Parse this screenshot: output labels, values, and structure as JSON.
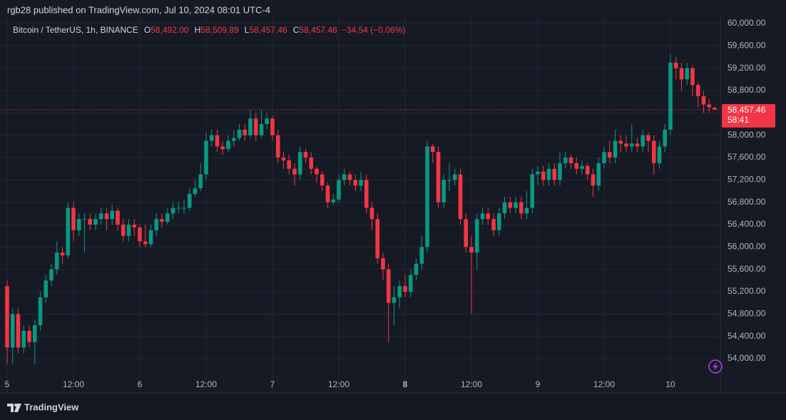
{
  "chart_data": {
    "type": "candlestick",
    "attribution": "rgb28 published on TradingView.com, Jul 10, 2024 08:01 UTC-4",
    "symbol": "Bitcoin / TetherUS, 1h, BINANCE",
    "ohlc_legend": [
      {
        "label": "O",
        "value": "58,492.00"
      },
      {
        "label": "H",
        "value": "58,509.89"
      },
      {
        "label": "L",
        "value": "58,457.46"
      },
      {
        "label": "C",
        "value": "58,457.46"
      }
    ],
    "change": "−34.54 (−0.06%)",
    "last_price_label": "58,457.46",
    "countdown": "58:41",
    "brand": "TradingView",
    "up_color": "#089981",
    "down_color": "#f23645",
    "grid": true,
    "categories": [
      "5",
      null,
      null,
      null,
      null,
      null,
      null,
      null,
      null,
      null,
      null,
      null,
      "12:00",
      null,
      null,
      null,
      null,
      null,
      null,
      null,
      null,
      null,
      null,
      null,
      "6",
      null,
      null,
      null,
      null,
      null,
      null,
      null,
      null,
      null,
      null,
      null,
      "12:00",
      null,
      null,
      null,
      null,
      null,
      null,
      null,
      null,
      null,
      null,
      null,
      "7",
      null,
      null,
      null,
      null,
      null,
      null,
      null,
      null,
      null,
      null,
      null,
      "12:00",
      null,
      null,
      null,
      null,
      null,
      null,
      null,
      null,
      null,
      null,
      null,
      "8",
      null,
      null,
      null,
      null,
      null,
      null,
      null,
      null,
      null,
      null,
      null,
      "12:00",
      null,
      null,
      null,
      null,
      null,
      null,
      null,
      null,
      null,
      null,
      null,
      "9",
      null,
      null,
      null,
      null,
      null,
      null,
      null,
      null,
      null,
      null,
      null,
      "12:00",
      null,
      null,
      null,
      null,
      null,
      null,
      null,
      null,
      null,
      null,
      null,
      "10",
      null,
      null,
      null,
      null,
      null,
      null,
      null,
      null
    ],
    "open": [
      55300,
      54200,
      54800,
      54200,
      54500,
      54300,
      54600,
      55100,
      55400,
      55600,
      55900,
      55850,
      56700,
      56300,
      56500,
      56500,
      56400,
      56500,
      56600,
      56500,
      56650,
      56400,
      56200,
      56400,
      56350,
      56100,
      56050,
      56300,
      56500,
      56450,
      56600,
      56700,
      56700,
      56700,
      56950,
      57050,
      57300,
      57900,
      58000,
      57800,
      57750,
      57900,
      57950,
      58100,
      58000,
      58300,
      58000,
      58200,
      58300,
      58000,
      57600,
      57550,
      57400,
      57300,
      57700,
      57600,
      57400,
      57300,
      57100,
      56800,
      56850,
      57200,
      57300,
      57200,
      57100,
      57200,
      56700,
      56500,
      55800,
      55600,
      55000,
      55100,
      55300,
      55200,
      55500,
      55700,
      56000,
      57800,
      57700,
      56800,
      57200,
      57200,
      57300,
      56500,
      56000,
      55900,
      56500,
      56600,
      56500,
      56300,
      56600,
      56800,
      56700,
      56800,
      56600,
      56700,
      57300,
      57350,
      57200,
      57400,
      57200,
      57500,
      57600,
      57500,
      57400,
      57450,
      57300,
      57100,
      57500,
      57700,
      57600,
      57900,
      57850,
      57800,
      57850,
      57800,
      58000,
      57900,
      57500,
      57800,
      58100,
      59300,
      59200,
      59000,
      59200,
      58900,
      58700,
      58550,
      58492
    ],
    "high": [
      55400,
      54900,
      54900,
      54600,
      54600,
      54700,
      55200,
      55500,
      55700,
      56100,
      56000,
      56800,
      56800,
      56600,
      56600,
      56600,
      56600,
      56700,
      56700,
      56750,
      56700,
      56500,
      56500,
      56500,
      56400,
      56400,
      56400,
      56600,
      56600,
      56700,
      56800,
      56800,
      56850,
      57050,
      57200,
      57500,
      58050,
      58100,
      58100,
      57900,
      58000,
      58100,
      58200,
      58200,
      58450,
      58400,
      58450,
      58400,
      58350,
      58100,
      57700,
      57650,
      57500,
      57800,
      57750,
      57700,
      57450,
      57350,
      57150,
      56950,
      57300,
      57400,
      57350,
      57300,
      57350,
      57300,
      56800,
      56600,
      55900,
      55700,
      55300,
      55400,
      55500,
      55600,
      55800,
      56200,
      57900,
      57850,
      57800,
      57300,
      57500,
      57400,
      57400,
      56600,
      56200,
      56600,
      56700,
      56700,
      56600,
      56700,
      56900,
      56900,
      56900,
      56900,
      57000,
      57400,
      57450,
      57450,
      57500,
      57500,
      57700,
      57700,
      57650,
      57600,
      57550,
      57500,
      57400,
      57600,
      57800,
      57900,
      58100,
      58000,
      58000,
      58200,
      57950,
      58100,
      58050,
      58000,
      57900,
      58200,
      59450,
      59400,
      59300,
      59300,
      59250,
      58950,
      58800,
      58650,
      58509.89
    ],
    "low": [
      53900,
      53900,
      54100,
      54100,
      54200,
      53900,
      54500,
      55000,
      55300,
      55500,
      55700,
      55800,
      56100,
      56200,
      55900,
      56300,
      56300,
      56400,
      56300,
      56400,
      56300,
      56100,
      56100,
      56200,
      56000,
      56000,
      56000,
      56200,
      56350,
      56400,
      56500,
      56600,
      56600,
      56650,
      56900,
      57000,
      57200,
      57800,
      57700,
      57650,
      57700,
      57800,
      57900,
      57900,
      57950,
      57900,
      57950,
      58100,
      57900,
      57500,
      57400,
      57300,
      57100,
      57200,
      57500,
      57300,
      57150,
      57000,
      56700,
      56750,
      56800,
      57100,
      57100,
      57000,
      57000,
      56600,
      56300,
      55700,
      55400,
      54300,
      54600,
      54900,
      55100,
      55100,
      55400,
      55600,
      55900,
      57500,
      56700,
      56700,
      57000,
      57100,
      56400,
      55900,
      54800,
      55600,
      56400,
      56400,
      56200,
      56200,
      56500,
      56600,
      56600,
      56500,
      56500,
      56600,
      57100,
      57100,
      57100,
      57100,
      57100,
      57400,
      57400,
      57300,
      57300,
      57200,
      56900,
      57000,
      57400,
      57500,
      57500,
      57700,
      57700,
      57700,
      57700,
      57700,
      57700,
      57300,
      57400,
      57700,
      58000,
      59000,
      58800,
      58900,
      58700,
      58500,
      58400,
      58400,
      58457.46
    ],
    "close": [
      54200,
      54800,
      54200,
      54500,
      54300,
      54600,
      55100,
      55400,
      55600,
      55900,
      55850,
      56700,
      56300,
      56500,
      56500,
      56400,
      56500,
      56600,
      56500,
      56650,
      56400,
      56200,
      56400,
      56350,
      56100,
      56050,
      56300,
      56500,
      56450,
      56600,
      56700,
      56700,
      56700,
      56950,
      57050,
      57300,
      57900,
      58000,
      57800,
      57750,
      57900,
      57950,
      58100,
      58000,
      58300,
      58000,
      58200,
      58300,
      58000,
      57600,
      57550,
      57400,
      57300,
      57700,
      57600,
      57400,
      57300,
      57100,
      56800,
      56850,
      57200,
      57300,
      57200,
      57100,
      57200,
      56700,
      56500,
      55800,
      55600,
      55000,
      55100,
      55300,
      55200,
      55500,
      55700,
      56000,
      57800,
      57700,
      56800,
      57200,
      57200,
      57300,
      56500,
      56000,
      55900,
      56500,
      56600,
      56500,
      56300,
      56600,
      56800,
      56700,
      56800,
      56600,
      56700,
      57300,
      57350,
      57200,
      57400,
      57200,
      57500,
      57600,
      57500,
      57400,
      57450,
      57300,
      57100,
      57500,
      57700,
      57600,
      57900,
      57850,
      57800,
      57850,
      57800,
      58000,
      57900,
      57500,
      57800,
      58100,
      59300,
      59200,
      59000,
      59200,
      58900,
      58700,
      58550,
      58500,
      58457.46
    ],
    "ylim": [
      53720,
      60140
    ],
    "yticks": [
      {
        "value": 54000,
        "label": "54,000.00"
      },
      {
        "value": 54400,
        "label": "54,400.00"
      },
      {
        "value": 54800,
        "label": "54,800.00"
      },
      {
        "value": 55200,
        "label": "55,200.00"
      },
      {
        "value": 55600,
        "label": "55,600.00"
      },
      {
        "value": 56000,
        "label": "56,000.00"
      },
      {
        "value": 56400,
        "label": "56,400.00"
      },
      {
        "value": 56800,
        "label": "56,800.00"
      },
      {
        "value": 57200,
        "label": "57,200.00"
      },
      {
        "value": 57600,
        "label": "57,600.00"
      },
      {
        "value": 58000,
        "label": "58,000.00"
      },
      {
        "value": 58400,
        "label": "58,400.00"
      },
      {
        "value": 58800,
        "label": "58,800.00"
      },
      {
        "value": 59200,
        "label": "59,200.00"
      },
      {
        "value": 59600,
        "label": "59,600.00"
      },
      {
        "value": 60000,
        "label": "60,000.00"
      }
    ]
  }
}
